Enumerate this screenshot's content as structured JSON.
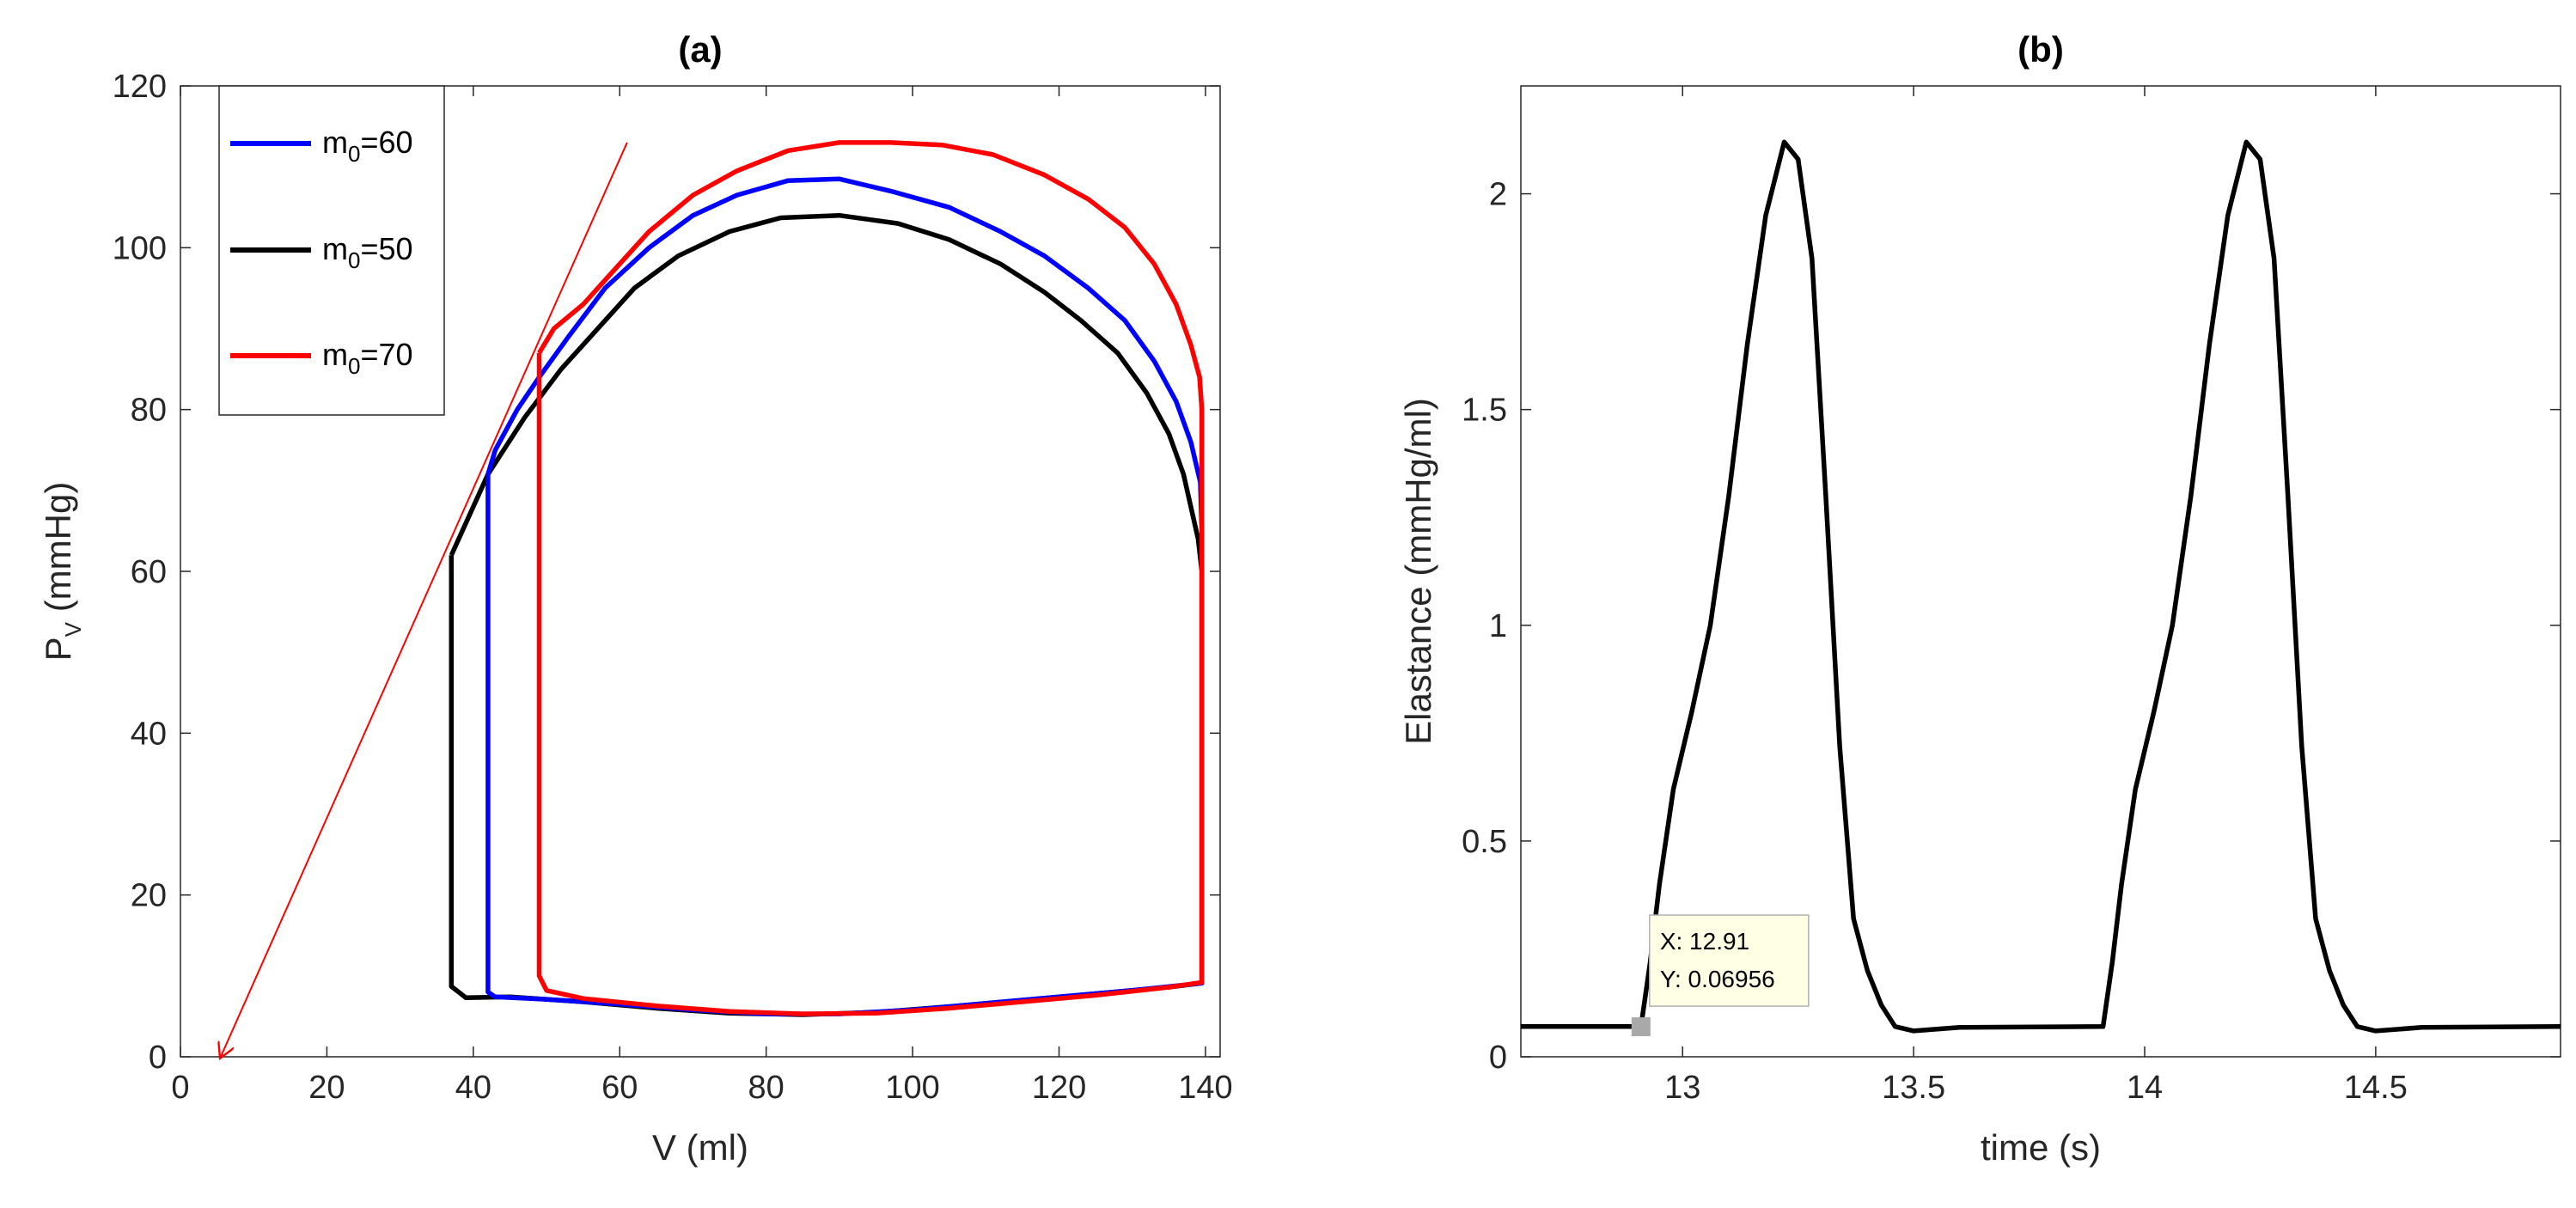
{
  "chart_data": [
    {
      "type": "line",
      "title": "(a)",
      "xlabel": "V (ml)",
      "ylabel": {
        "main": "P",
        "sub": "V",
        "suffix": " (mmHg)"
      },
      "xlim": [
        0,
        142
      ],
      "ylim": [
        0,
        120
      ],
      "xticks": [
        "0",
        "20",
        "40",
        "60",
        "80",
        "100",
        "120",
        "140"
      ],
      "yticks": [
        "0",
        "20",
        "40",
        "60",
        "80",
        "100",
        "120"
      ],
      "legend": {
        "placement": "top-left",
        "entries": [
          {
            "base": "m",
            "sub": "0",
            "rest": "=60",
            "color": "#0000ff"
          },
          {
            "base": "m",
            "sub": "0",
            "rest": "=50",
            "color": "#000000"
          },
          {
            "base": "m",
            "sub": "0",
            "rest": "=70",
            "color": "#ff0000"
          }
        ]
      },
      "series": [
        {
          "name": "m0=50",
          "color": "#000000",
          "points": [
            [
              37,
              62
            ],
            [
              37,
              8.7
            ],
            [
              39,
              7.3
            ],
            [
              45,
              7.4
            ],
            [
              55,
              6.8
            ],
            [
              65,
              6.0
            ],
            [
              75,
              5.4
            ],
            [
              85,
              5.2
            ],
            [
              95,
              5.5
            ],
            [
              105,
              6.2
            ],
            [
              115,
              7.0
            ],
            [
              125,
              7.8
            ],
            [
              135,
              8.6
            ],
            [
              139.5,
              9.1
            ],
            [
              139.5,
              60
            ],
            [
              139,
              64
            ],
            [
              137,
              72
            ],
            [
              135,
              77
            ],
            [
              132,
              82
            ],
            [
              128,
              87
            ],
            [
              123,
              91
            ],
            [
              118,
              94.5
            ],
            [
              112,
              98
            ],
            [
              105,
              101
            ],
            [
              98,
              103
            ],
            [
              90,
              104
            ],
            [
              82,
              103.7
            ],
            [
              75,
              102
            ],
            [
              68,
              99
            ],
            [
              62,
              95
            ],
            [
              57,
              90
            ],
            [
              52,
              85
            ],
            [
              47,
              79
            ],
            [
              42,
              72
            ],
            [
              39.5,
              67
            ],
            [
              37,
              62
            ]
          ]
        },
        {
          "name": "m0=60",
          "color": "#0000ff",
          "points": [
            [
              42,
              72
            ],
            [
              42,
              8
            ],
            [
              43,
              7.4
            ],
            [
              50,
              7.1
            ],
            [
              60,
              6.5
            ],
            [
              70,
              5.8
            ],
            [
              80,
              5.3
            ],
            [
              90,
              5.3
            ],
            [
              100,
              5.8
            ],
            [
              110,
              6.6
            ],
            [
              120,
              7.4
            ],
            [
              130,
              8.2
            ],
            [
              139.5,
              9.1
            ],
            [
              139.5,
              65
            ],
            [
              139.3,
              71
            ],
            [
              138,
              76
            ],
            [
              136,
              81
            ],
            [
              133,
              86
            ],
            [
              129,
              91
            ],
            [
              124,
              95
            ],
            [
              118,
              99
            ],
            [
              112,
              102
            ],
            [
              105,
              105
            ],
            [
              97,
              107
            ],
            [
              90,
              108.5
            ],
            [
              83,
              108.3
            ],
            [
              76,
              106.5
            ],
            [
              70,
              104
            ],
            [
              64,
              100
            ],
            [
              58,
              95
            ],
            [
              53,
              89
            ],
            [
              49,
              84
            ],
            [
              46,
              80
            ],
            [
              43,
              75
            ],
            [
              42,
              72
            ]
          ]
        },
        {
          "name": "m0=70",
          "color": "#ff0000",
          "points": [
            [
              49,
              87
            ],
            [
              49,
              10
            ],
            [
              50,
              8.2
            ],
            [
              55,
              7.2
            ],
            [
              65,
              6.3
            ],
            [
              75,
              5.6
            ],
            [
              85,
              5.3
            ],
            [
              95,
              5.4
            ],
            [
              105,
              6.0
            ],
            [
              115,
              6.8
            ],
            [
              125,
              7.6
            ],
            [
              135,
              8.6
            ],
            [
              139.5,
              9.2
            ],
            [
              139.5,
              80
            ],
            [
              139.2,
              84
            ],
            [
              138,
              88
            ],
            [
              136,
              93
            ],
            [
              133,
              98
            ],
            [
              129,
              102.5
            ],
            [
              124,
              106
            ],
            [
              118,
              109
            ],
            [
              111,
              111.5
            ],
            [
              104,
              112.7
            ],
            [
              97,
              113
            ],
            [
              90,
              113
            ],
            [
              83,
              112
            ],
            [
              76,
              109.5
            ],
            [
              70,
              106.5
            ],
            [
              64,
              102
            ],
            [
              59,
              97
            ],
            [
              55,
              93
            ],
            [
              51,
              90
            ],
            [
              49,
              87
            ]
          ]
        }
      ],
      "annotations": [
        {
          "type": "arrow",
          "color": "#ff0000",
          "from": [
            61,
            113
          ],
          "to": [
            5.5,
            0
          ]
        }
      ]
    },
    {
      "type": "line",
      "title": "(b)",
      "xlabel": "time (s)",
      "ylabel": "Elastance (mmHg/ml)",
      "xlim": [
        12.65,
        14.9
      ],
      "ylim": [
        0,
        2.25
      ],
      "xticks": [
        "13",
        "13.5",
        "14",
        "14.5"
      ],
      "xtick_values": [
        13,
        13.5,
        14,
        14.5
      ],
      "yticks": [
        "0",
        "0.5",
        "1",
        "1.5",
        "2"
      ],
      "ytick_values": [
        0,
        0.5,
        1,
        1.5,
        2
      ],
      "series": [
        {
          "name": "Elastance",
          "color": "#000000",
          "points": [
            [
              12.65,
              0.07
            ],
            [
              12.91,
              0.07
            ],
            [
              12.93,
              0.22
            ],
            [
              12.95,
              0.4
            ],
            [
              12.98,
              0.62
            ],
            [
              13.02,
              0.8
            ],
            [
              13.06,
              1.0
            ],
            [
              13.1,
              1.3
            ],
            [
              13.14,
              1.65
            ],
            [
              13.18,
              1.95
            ],
            [
              13.22,
              2.12
            ],
            [
              13.25,
              2.08
            ],
            [
              13.28,
              1.85
            ],
            [
              13.31,
              1.3
            ],
            [
              13.34,
              0.72
            ],
            [
              13.37,
              0.32
            ],
            [
              13.4,
              0.2
            ],
            [
              13.43,
              0.12
            ],
            [
              13.46,
              0.07
            ],
            [
              13.5,
              0.06
            ],
            [
              13.6,
              0.068
            ],
            [
              13.91,
              0.07
            ],
            [
              13.93,
              0.22
            ],
            [
              13.95,
              0.4
            ],
            [
              13.98,
              0.62
            ],
            [
              14.02,
              0.8
            ],
            [
              14.06,
              1.0
            ],
            [
              14.1,
              1.3
            ],
            [
              14.14,
              1.65
            ],
            [
              14.18,
              1.95
            ],
            [
              14.22,
              2.12
            ],
            [
              14.25,
              2.08
            ],
            [
              14.28,
              1.85
            ],
            [
              14.31,
              1.3
            ],
            [
              14.34,
              0.72
            ],
            [
              14.37,
              0.32
            ],
            [
              14.4,
              0.2
            ],
            [
              14.43,
              0.12
            ],
            [
              14.46,
              0.07
            ],
            [
              14.5,
              0.06
            ],
            [
              14.6,
              0.068
            ],
            [
              14.9,
              0.07
            ]
          ]
        }
      ],
      "datatip": {
        "x": 12.91,
        "y": 0.06956,
        "line1": "X: 12.91",
        "line2": "Y: 0.06956"
      }
    }
  ]
}
